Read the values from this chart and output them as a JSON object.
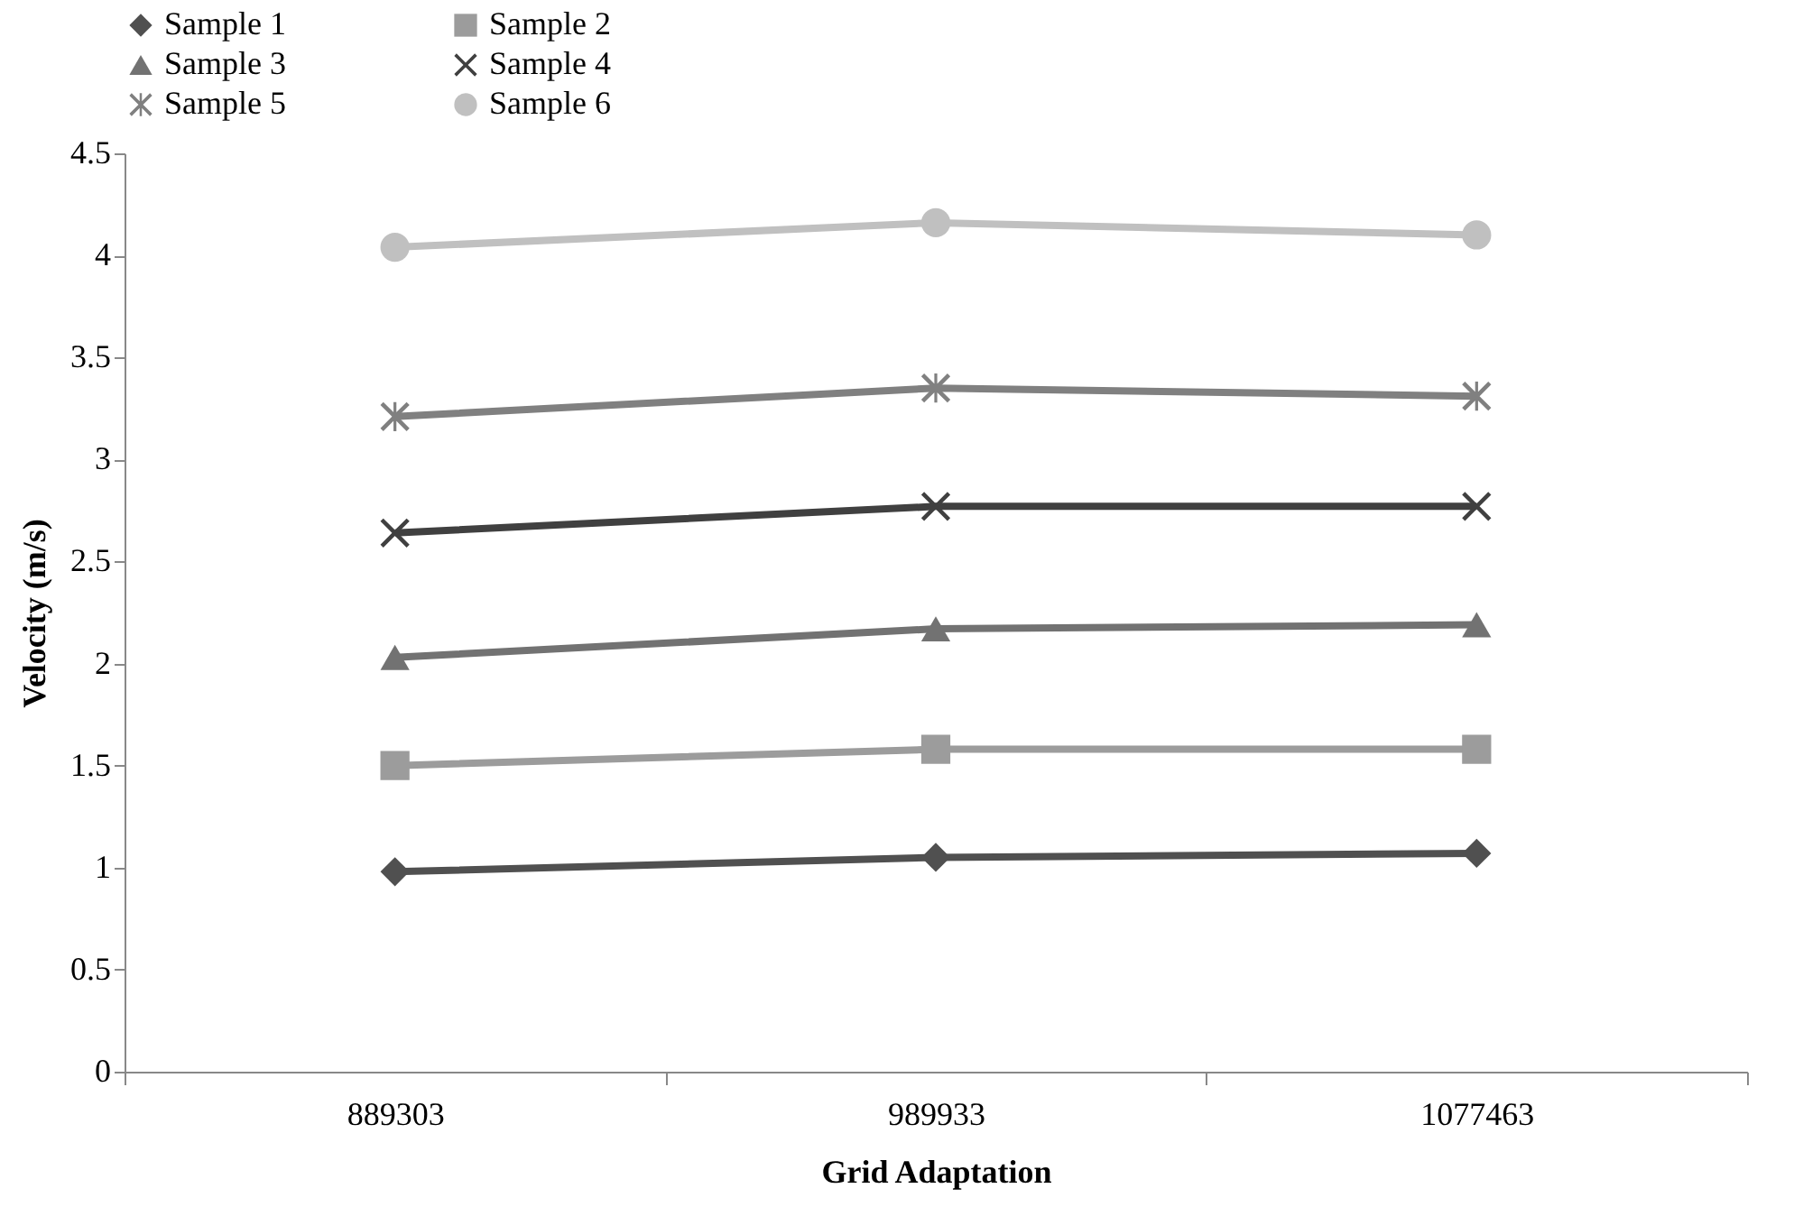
{
  "chart_data": {
    "type": "line",
    "xlabel": "Grid Adaptation",
    "ylabel": "Velocity (m/s)",
    "categories": [
      "889303",
      "989933",
      "1077463"
    ],
    "series": [
      {
        "name": "Sample 1",
        "color": "#505050",
        "marker": "diamond",
        "values": [
          0.98,
          1.05,
          1.07
        ]
      },
      {
        "name": "Sample 2",
        "color": "#9c9c9c",
        "marker": "square",
        "values": [
          1.5,
          1.58,
          1.58
        ]
      },
      {
        "name": "Sample 3",
        "color": "#727272",
        "marker": "triangle",
        "values": [
          2.03,
          2.17,
          2.19
        ]
      },
      {
        "name": "Sample 4",
        "color": "#404040",
        "marker": "cross",
        "values": [
          2.64,
          2.77,
          2.77
        ]
      },
      {
        "name": "Sample 5",
        "color": "#808080",
        "marker": "star",
        "values": [
          3.21,
          3.35,
          3.31
        ]
      },
      {
        "name": "Sample 6",
        "color": "#c0c0c0",
        "marker": "circle",
        "values": [
          4.04,
          4.16,
          4.1
        ]
      }
    ],
    "ylim": [
      0,
      4.5
    ],
    "yticks": [
      0,
      0.5,
      1,
      1.5,
      2,
      2.5,
      3,
      3.5,
      4,
      4.5
    ],
    "grid": false,
    "legend": "top",
    "line_style": "solid"
  }
}
